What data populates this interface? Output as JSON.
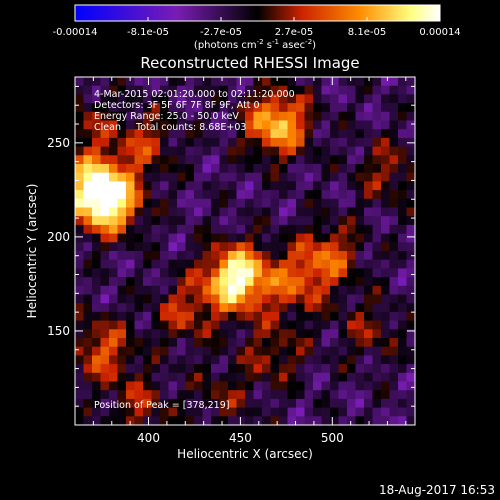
{
  "colorbar": {
    "ticks": [
      "-0.00014",
      "-8.1e-05",
      "-2.7e-05",
      "2.7e-05",
      "8.1e-05",
      "0.00014"
    ],
    "units_main": "(photons cm",
    "units_sup1": "-2",
    "units_mid": " s",
    "units_sup2": "-1",
    "units_end": " asec",
    "units_sup3": "-2",
    "units_close": ")",
    "colors": [
      "#0000ff",
      "#7a1cb4",
      "#000000",
      "#cc2200",
      "#ff8c00",
      "#ffff80",
      "#ffffff"
    ]
  },
  "chart_data": {
    "type": "heatmap",
    "title": "Reconstructed RHESSI Image",
    "xlabel": "Heliocentric X (arcsec)",
    "ylabel": "Heliocentric Y (arcsec)",
    "xlim": [
      360,
      545
    ],
    "ylim": [
      100,
      285
    ],
    "xticks": [
      400,
      450,
      500
    ],
    "yticks": [
      150,
      200,
      250
    ],
    "zlim": [
      -0.00014,
      0.00014
    ],
    "annotations": {
      "line1": "4-Mar-2015 02:01:20.000 to 02:11:20.000",
      "line2": "Detectors: 3F 5F 6F 7F 8F 9F, Att 0",
      "line3": "Energy Range: 25.0 - 50.0 keV",
      "line4": "Clean     Total counts: 8.68E+03",
      "peak": "Position of Peak = [378,219]"
    },
    "peak": {
      "x": 378,
      "y": 219
    },
    "sources": [
      {
        "x": 448,
        "y": 178,
        "amp": 1.0
      },
      {
        "x": 378,
        "y": 219,
        "amp": 0.92
      },
      {
        "x": 368,
        "y": 228,
        "amp": 0.55
      },
      {
        "x": 470,
        "y": 260,
        "amp": 0.75
      },
      {
        "x": 498,
        "y": 190,
        "amp": 0.45
      },
      {
        "x": 480,
        "y": 175,
        "amp": 0.4
      },
      {
        "x": 420,
        "y": 160,
        "amp": 0.35
      },
      {
        "x": 375,
        "y": 140,
        "amp": 0.45
      },
      {
        "x": 398,
        "y": 250,
        "amp": 0.35
      },
      {
        "x": 530,
        "y": 235,
        "amp": 0.3
      },
      {
        "x": 395,
        "y": 110,
        "amp": 0.3
      },
      {
        "x": 468,
        "y": 138,
        "amp": 0.3
      },
      {
        "x": 520,
        "y": 150,
        "amp": 0.25
      },
      {
        "x": 440,
        "y": 115,
        "amp": 0.22
      },
      {
        "x": 365,
        "y": 260,
        "amp": 0.25
      }
    ]
  },
  "timestamp": "18-Aug-2017 16:53"
}
